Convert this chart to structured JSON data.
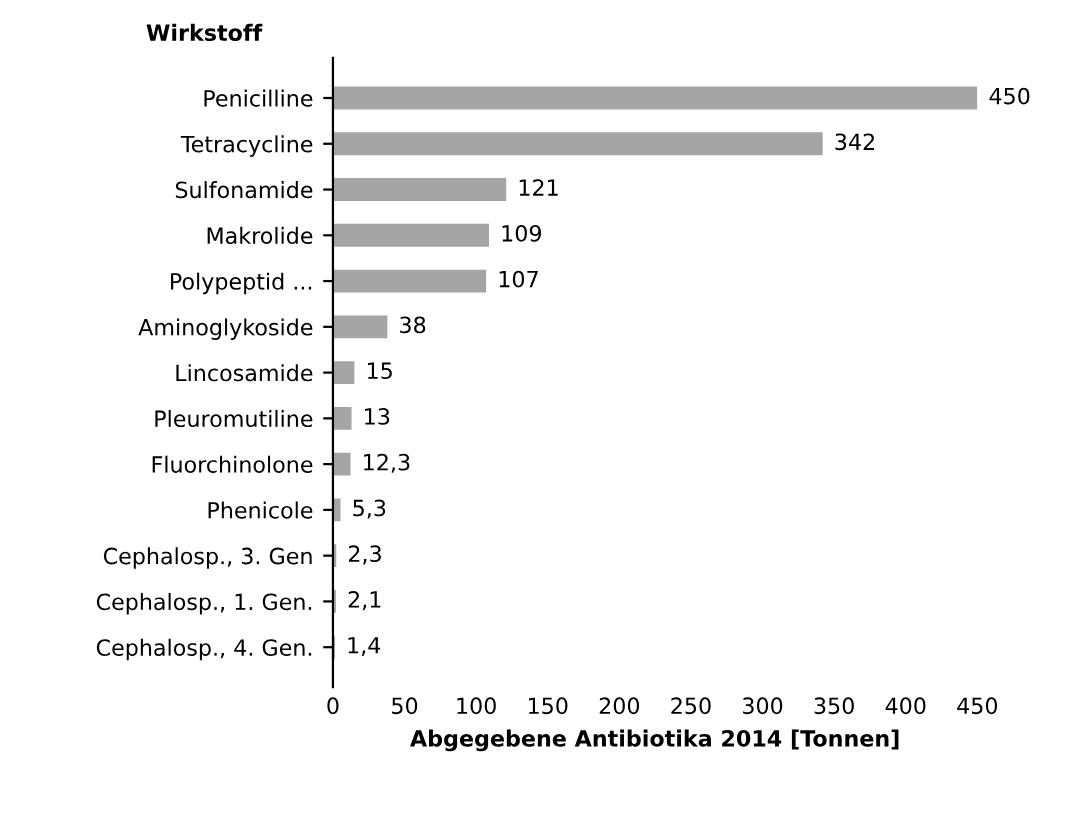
{
  "chart_data": {
    "type": "bar",
    "orientation": "horizontal",
    "ylabel": "Wirkstoff",
    "xlabel": "Abgegebene Antibiotika 2014 [Tonnen]",
    "categories": [
      "Penicilline",
      "Tetracycline",
      "Sulfonamide",
      "Makrolide",
      "Polypeptid ...",
      "Aminoglykoside",
      "Lincosamide",
      "Pleuromutiline",
      "Fluorchinolone",
      "Phenicole",
      "Cephalosp., 3. Gen",
      "Cephalosp., 1. Gen.",
      "Cephalosp., 4. Gen."
    ],
    "values": [
      450,
      342,
      121,
      109,
      107,
      38,
      15,
      13,
      12.3,
      5.3,
      2.3,
      2.1,
      1.4
    ],
    "value_labels": [
      "450",
      "342",
      "121",
      "109",
      "107",
      "38",
      "15",
      "13",
      "12,3",
      "5,3",
      "2,3",
      "2,1",
      "1,4"
    ],
    "color": "#a5a5a5",
    "xlim": [
      0,
      450
    ],
    "xticks": [
      0,
      50,
      100,
      150,
      200,
      250,
      300,
      350,
      400,
      450
    ],
    "grid": false,
    "legend": false
  }
}
